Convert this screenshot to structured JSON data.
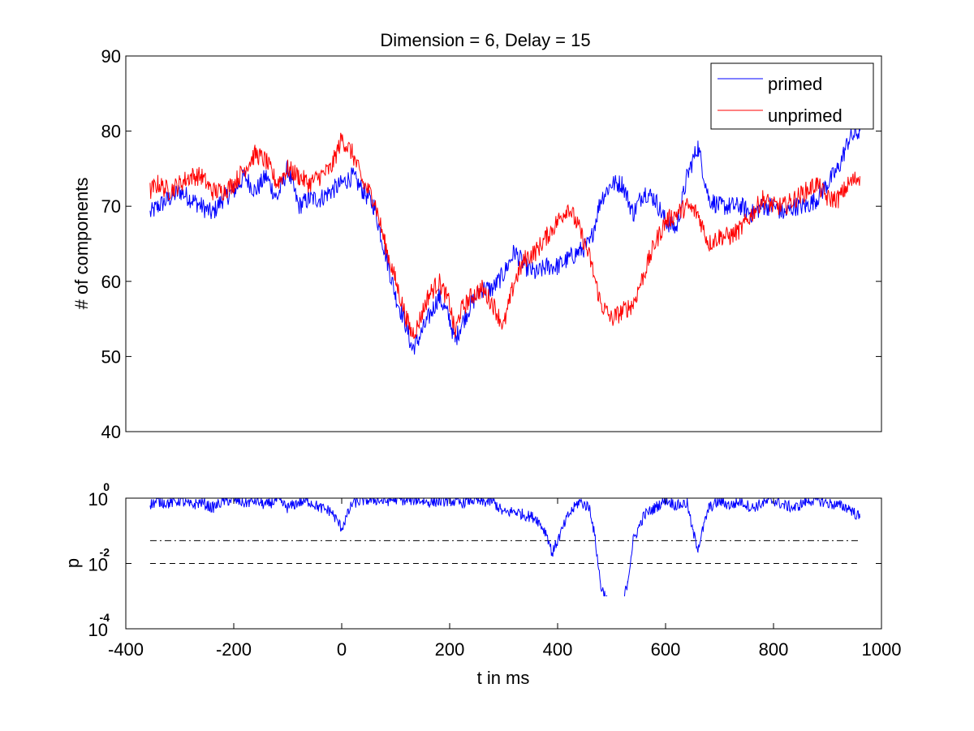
{
  "figure": {
    "background": "#ffffff"
  },
  "chart_data": [
    {
      "type": "line",
      "title": "Dimension  = 6, Delay = 15",
      "xlabel": "",
      "ylabel": "# of components",
      "xlim": [
        -400,
        1000
      ],
      "ylim": [
        40,
        90
      ],
      "yticks": [
        "40",
        "50",
        "60",
        "70",
        "80",
        "90"
      ],
      "legend": {
        "placement": "top-right"
      },
      "grid": false,
      "series": [
        {
          "name": "primed",
          "color": "#0000ff",
          "x": [
            -355,
            -340,
            -320,
            -300,
            -280,
            -260,
            -240,
            -220,
            -200,
            -180,
            -160,
            -140,
            -120,
            -100,
            -80,
            -60,
            -40,
            -20,
            0,
            20,
            40,
            60,
            80,
            100,
            120,
            130,
            140,
            160,
            180,
            200,
            210,
            220,
            240,
            260,
            280,
            300,
            320,
            340,
            360,
            380,
            400,
            420,
            440,
            460,
            480,
            500,
            520,
            540,
            560,
            580,
            600,
            620,
            640,
            660,
            680,
            700,
            720,
            740,
            760,
            780,
            800,
            820,
            840,
            860,
            880,
            900,
            920,
            940,
            960
          ],
          "y": [
            69,
            70,
            71,
            72,
            71,
            70,
            69,
            71,
            72,
            74,
            72,
            74,
            71,
            75,
            70,
            71,
            71,
            72,
            73,
            74,
            72,
            70,
            64,
            58,
            54,
            51,
            52,
            55,
            58,
            55,
            52,
            54,
            57,
            59,
            59,
            61,
            64,
            62,
            61,
            62,
            62,
            63,
            64,
            65,
            71,
            73,
            73,
            69,
            72,
            71,
            68,
            67,
            74,
            78,
            71,
            70,
            70,
            70,
            69,
            70,
            70,
            69,
            70,
            70,
            71,
            73,
            75,
            79,
            80
          ]
        },
        {
          "name": "unprimed",
          "color": "#ff0000",
          "x": [
            -355,
            -340,
            -320,
            -300,
            -280,
            -260,
            -240,
            -220,
            -200,
            -180,
            -160,
            -140,
            -120,
            -100,
            -80,
            -60,
            -40,
            -20,
            0,
            20,
            40,
            60,
            80,
            100,
            120,
            130,
            140,
            160,
            180,
            200,
            210,
            220,
            240,
            260,
            280,
            300,
            320,
            340,
            360,
            380,
            400,
            420,
            440,
            460,
            480,
            500,
            520,
            540,
            560,
            580,
            600,
            620,
            640,
            660,
            680,
            700,
            720,
            740,
            760,
            780,
            800,
            820,
            840,
            860,
            880,
            900,
            920,
            940,
            960
          ],
          "y": [
            72,
            73,
            72,
            73,
            74,
            74,
            72,
            72,
            73,
            75,
            77,
            76,
            73,
            75,
            74,
            73,
            74,
            75,
            79,
            77,
            73,
            71,
            65,
            60,
            55,
            53,
            54,
            58,
            60,
            57,
            53,
            56,
            58,
            59,
            57,
            54,
            60,
            63,
            64,
            66,
            68,
            70,
            67,
            63,
            57,
            55,
            56,
            57,
            61,
            65,
            68,
            69,
            70,
            69,
            65,
            66,
            66,
            67,
            69,
            71,
            70,
            70,
            71,
            72,
            73,
            71,
            71,
            73,
            74
          ]
        }
      ]
    },
    {
      "type": "line",
      "title": "",
      "xlabel": "t in ms",
      "ylabel": "p",
      "xlim": [
        -400,
        1000
      ],
      "xticks": [
        "-400",
        "-200",
        "0",
        "200",
        "400",
        "600",
        "800",
        "1000"
      ],
      "yscale": "log",
      "ylim": [
        0.0001,
        1
      ],
      "yticks": [
        {
          "base": "10",
          "exp": "-4"
        },
        {
          "base": "10",
          "exp": "-2"
        },
        {
          "base": "10",
          "exp": "0"
        }
      ],
      "grid": false,
      "reference_lines": [
        {
          "y": 0.05,
          "style": "dash-dot",
          "color": "#000000"
        },
        {
          "y": 0.01,
          "style": "dashed",
          "color": "#000000"
        }
      ],
      "series": [
        {
          "name": "",
          "color": "#0000ff",
          "x": [
            -355,
            -340,
            -320,
            -300,
            -280,
            -260,
            -240,
            -220,
            -200,
            -180,
            -160,
            -140,
            -120,
            -100,
            -80,
            -60,
            -40,
            -20,
            0,
            20,
            40,
            60,
            80,
            100,
            120,
            140,
            160,
            180,
            200,
            220,
            240,
            260,
            280,
            300,
            320,
            340,
            360,
            380,
            390,
            400,
            420,
            440,
            460,
            470,
            480,
            500,
            520,
            530,
            540,
            560,
            580,
            600,
            620,
            640,
            650,
            660,
            680,
            700,
            720,
            740,
            760,
            780,
            800,
            820,
            840,
            860,
            880,
            900,
            920,
            940,
            960
          ],
          "y": [
            0.65,
            0.8,
            0.7,
            0.85,
            0.6,
            0.75,
            0.5,
            0.8,
            0.9,
            0.7,
            0.85,
            0.6,
            0.9,
            0.5,
            0.75,
            0.8,
            0.5,
            0.4,
            0.12,
            0.7,
            0.85,
            0.9,
            0.8,
            0.95,
            0.85,
            0.9,
            0.75,
            0.8,
            0.85,
            0.7,
            0.9,
            0.75,
            0.8,
            0.35,
            0.4,
            0.3,
            0.25,
            0.08,
            0.02,
            0.05,
            0.3,
            0.8,
            0.5,
            0.05,
            0.002,
            0.0004,
            0.0005,
            0.003,
            0.05,
            0.3,
            0.5,
            0.9,
            0.6,
            0.7,
            0.1,
            0.03,
            0.5,
            0.8,
            0.6,
            0.8,
            0.5,
            0.7,
            0.85,
            0.6,
            0.5,
            0.8,
            0.9,
            0.7,
            0.6,
            0.5,
            0.25
          ]
        }
      ]
    }
  ]
}
